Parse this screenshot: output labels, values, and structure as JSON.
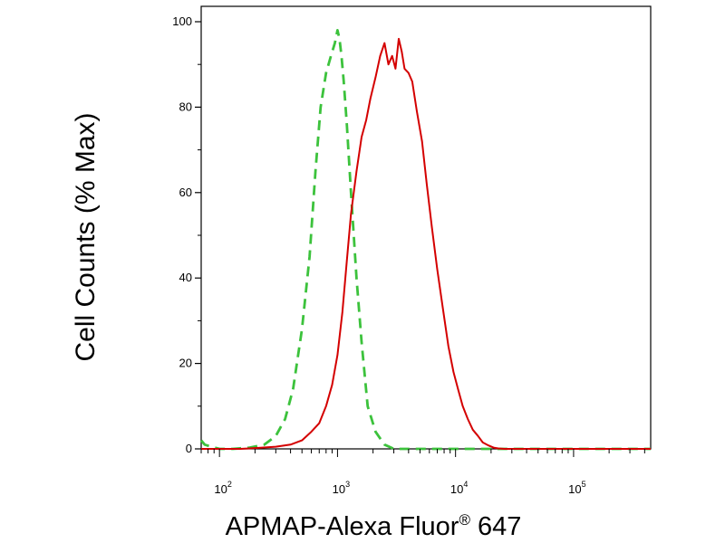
{
  "chart_data": {
    "type": "line",
    "title": "",
    "xlabel": "APMAP-Alexa Fluor",
    "xlabel_superscript": "®",
    "xlabel_suffix": " 647",
    "ylabel": "Cell Counts (% Max)",
    "x_scale": "log",
    "xlim": [
      70,
      450000
    ],
    "ylim": [
      0,
      100
    ],
    "y_ticks": [
      0,
      20,
      40,
      60,
      80,
      100
    ],
    "y_tick_labels": [
      "0",
      "20",
      "40",
      "60",
      "80",
      "100"
    ],
    "x_ticks": [
      100,
      1000,
      10000,
      100000
    ],
    "x_tick_bases": [
      "10",
      "10",
      "10",
      "10"
    ],
    "x_tick_exponents": [
      "2",
      "3",
      "4",
      "5"
    ],
    "grid": false,
    "legend": "none",
    "series": [
      {
        "color": "#3cc23c",
        "style": "dashed",
        "x": [
          70,
          75,
          85,
          100,
          130,
          180,
          240,
          300,
          360,
          420,
          500,
          580,
          650,
          720,
          800,
          880,
          950,
          1000,
          1040,
          1080,
          1130,
          1200,
          1300,
          1450,
          1600,
          1800,
          2100,
          2500,
          3000,
          5000,
          10000,
          30000,
          100000,
          450000
        ],
        "y": [
          2,
          1,
          0.5,
          0,
          0,
          0.3,
          1,
          3,
          7,
          14,
          28,
          45,
          65,
          80,
          88,
          92,
          95,
          98,
          96,
          92,
          86,
          76,
          60,
          40,
          25,
          10,
          4,
          1,
          0,
          0,
          0,
          0,
          0,
          0
        ]
      },
      {
        "color": "#d40000",
        "style": "solid",
        "x": [
          70,
          100,
          150,
          200,
          300,
          400,
          500,
          600,
          700,
          800,
          900,
          1000,
          1100,
          1200,
          1300,
          1450,
          1600,
          1750,
          1900,
          2100,
          2300,
          2500,
          2700,
          2900,
          3100,
          3300,
          3500,
          3700,
          4000,
          4300,
          4700,
          5200,
          5700,
          6300,
          7000,
          7800,
          8700,
          9600,
          10500,
          11500,
          12700,
          14000,
          15500,
          17000,
          19000,
          21000,
          23000,
          26000,
          30000,
          40000,
          60000,
          100000,
          200000,
          450000
        ],
        "y": [
          0,
          0,
          0,
          0.2,
          0.5,
          1,
          2,
          4,
          6,
          10,
          15,
          22,
          32,
          44,
          55,
          65,
          73,
          77,
          82,
          87,
          92,
          95,
          90,
          92,
          89,
          96,
          93,
          89,
          88,
          86,
          79,
          72,
          62,
          52,
          42,
          33,
          24,
          18,
          14,
          10,
          7,
          4.5,
          3,
          1.5,
          0.8,
          0.3,
          0.1,
          0,
          0,
          0,
          0,
          0,
          0,
          0
        ]
      }
    ]
  }
}
